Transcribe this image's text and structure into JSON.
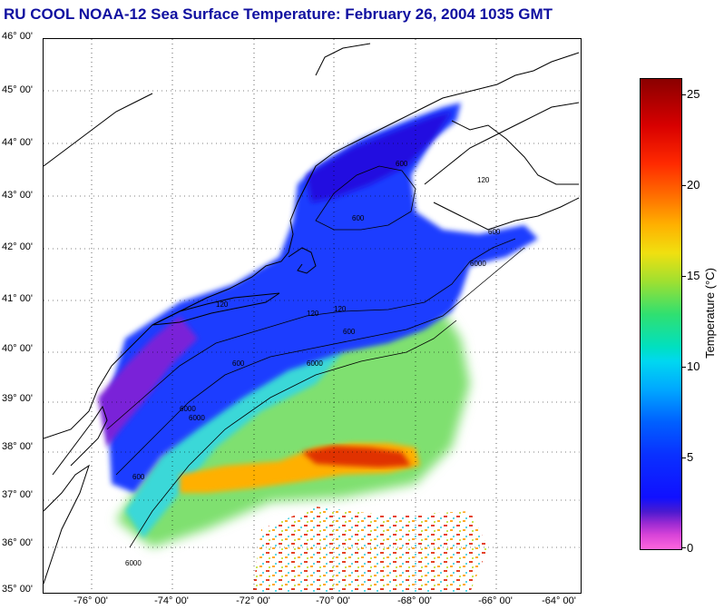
{
  "title": "RU COOL  NOAA-12  Sea Surface Temperature:  February 26, 2004 1035 GMT",
  "lat_labels": [
    "46° 00'",
    "45° 00'",
    "44° 00'",
    "43° 00'",
    "42° 00'",
    "41° 00'",
    "40° 00'",
    "39° 00'",
    "38° 00'",
    "37° 00'",
    "36° 00'",
    "35° 00'"
  ],
  "lon_labels": [
    "-76° 00'",
    "-74° 00'",
    "-72° 00'",
    "-70° 00'",
    "-68° 00'",
    "-66° 00'",
    "-64° 00'"
  ],
  "colorbar": {
    "title": "Temperature (°C)",
    "ticks": [
      "25",
      "20",
      "15",
      "10",
      "5",
      "0"
    ],
    "min": 0,
    "max": 26
  },
  "contour_labels": [
    "600",
    "120",
    "600",
    "600",
    "6000",
    "120",
    "600",
    "6000",
    "600",
    "6000",
    "120",
    "600",
    "6000",
    "6000",
    "120"
  ],
  "colors": {
    "title": "#1010a0",
    "cold": "#1a1ae8",
    "cool": "#1050ff",
    "mid": "#40d8e0",
    "warm": "#a8e050",
    "hot": "#ff8000",
    "hottest": "#d00000",
    "coast": "#000000"
  }
}
